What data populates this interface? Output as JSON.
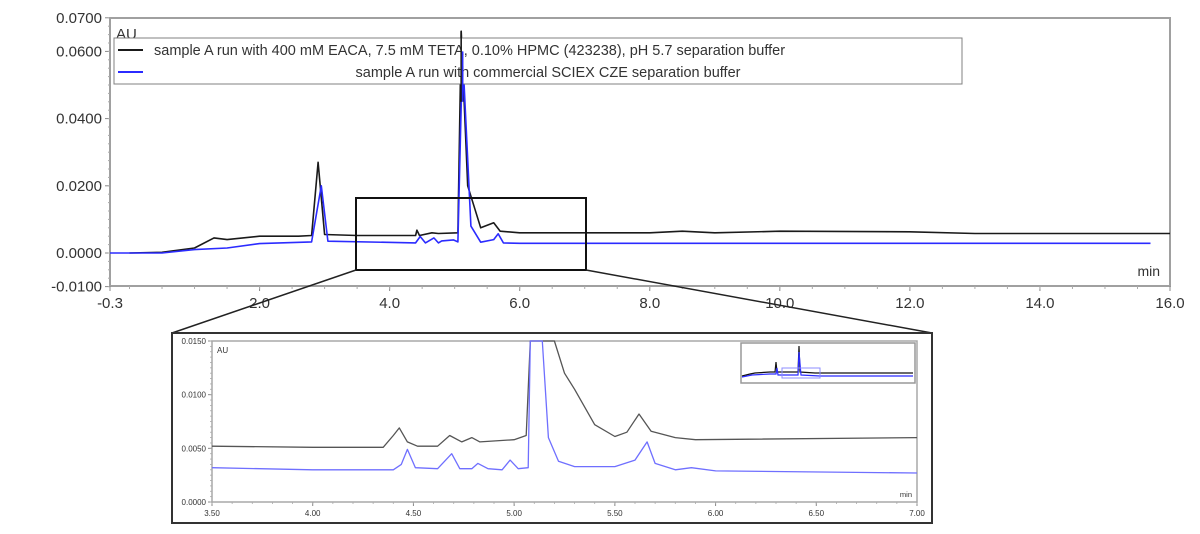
{
  "chart_data": [
    {
      "type": "line",
      "id": "main-electropherogram",
      "title": "",
      "xlabel": "min",
      "ylabel": "AU",
      "xlim": [
        -0.3,
        16.0
      ],
      "ylim": [
        -0.01,
        0.07
      ],
      "x_ticks": [
        "-0.3",
        "2.0",
        "4.0",
        "6.0",
        "8.0",
        "10.0",
        "12.0",
        "14.0",
        "16.0"
      ],
      "y_ticks": [
        "0.0700",
        "0.0600",
        "0.0400",
        "0.0200",
        "0.0000",
        "-0.0100"
      ],
      "legend_position": "top",
      "grid": false,
      "series": [
        {
          "name": "sample A run with 400 mM EACA, 7.5 mM TETA, 0.10% HPMC (423238), pH 5.7 separation buffer",
          "color": "#1a1a1a",
          "points": [
            [
              0.0,
              0.0
            ],
            [
              0.5,
              0.0002
            ],
            [
              1.0,
              0.0015
            ],
            [
              1.3,
              0.0045
            ],
            [
              1.5,
              0.004
            ],
            [
              2.0,
              0.005
            ],
            [
              2.6,
              0.005
            ],
            [
              2.8,
              0.0052
            ],
            [
              2.9,
              0.027
            ],
            [
              3.0,
              0.0055
            ],
            [
              3.5,
              0.0052
            ],
            [
              4.4,
              0.0052
            ],
            [
              4.42,
              0.0068
            ],
            [
              4.46,
              0.0052
            ],
            [
              4.65,
              0.006
            ],
            [
              4.75,
              0.0058
            ],
            [
              5.05,
              0.006
            ],
            [
              5.1,
              0.066
            ],
            [
              5.2,
              0.02
            ],
            [
              5.4,
              0.0075
            ],
            [
              5.6,
              0.009
            ],
            [
              5.7,
              0.0065
            ],
            [
              6.0,
              0.006
            ],
            [
              8.0,
              0.006
            ],
            [
              8.5,
              0.0065
            ],
            [
              9.0,
              0.006
            ],
            [
              10.0,
              0.0065
            ],
            [
              12.0,
              0.0063
            ],
            [
              13.0,
              0.0058
            ],
            [
              16.0,
              0.0058
            ]
          ]
        },
        {
          "name": "sample A run with commercial SCIEX CZE separation buffer",
          "color": "#2b2bff",
          "points": [
            [
              -0.3,
              0.0
            ],
            [
              0.5,
              0.0
            ],
            [
              1.0,
              0.001
            ],
            [
              1.5,
              0.0015
            ],
            [
              2.0,
              0.0028
            ],
            [
              2.8,
              0.0033
            ],
            [
              2.95,
              0.02
            ],
            [
              3.05,
              0.0035
            ],
            [
              4.4,
              0.003
            ],
            [
              4.47,
              0.0049
            ],
            [
              4.55,
              0.003
            ],
            [
              4.68,
              0.0045
            ],
            [
              4.75,
              0.003
            ],
            [
              4.8,
              0.0036
            ],
            [
              4.98,
              0.0039
            ],
            [
              5.05,
              0.0033
            ],
            [
              5.12,
              0.06
            ],
            [
              5.25,
              0.008
            ],
            [
              5.4,
              0.0032
            ],
            [
              5.6,
              0.004
            ],
            [
              5.67,
              0.0057
            ],
            [
              5.75,
              0.003
            ],
            [
              6.0,
              0.0029
            ],
            [
              10.0,
              0.0029
            ],
            [
              15.7,
              0.0029
            ]
          ]
        }
      ],
      "zoom_box": {
        "x": [
          3.5,
          7.0
        ],
        "y": [
          -0.005,
          0.0165
        ]
      }
    },
    {
      "type": "line",
      "id": "inset-zoom",
      "title": "",
      "xlabel": "min",
      "ylabel": "AU",
      "xlim": [
        3.5,
        7.0
      ],
      "ylim": [
        0.0,
        0.015
      ],
      "x_ticks": [
        "3.50",
        "4.00",
        "4.50",
        "5.00",
        "5.50",
        "6.00",
        "6.50",
        "7.00"
      ],
      "y_ticks": [
        "0.0150",
        "0.0100",
        "0.0050",
        "0.0000"
      ],
      "grid": false,
      "series": [
        {
          "name": "sample A run with 400 mM EACA, 7.5 mM TETA, 0.10% HPMC (423238), pH 5.7 separation buffer",
          "color": "#555555",
          "points": [
            [
              3.5,
              0.0052
            ],
            [
              4.0,
              0.0051
            ],
            [
              4.35,
              0.0051
            ],
            [
              4.4,
              0.0062
            ],
            [
              4.43,
              0.0069
            ],
            [
              4.47,
              0.0056
            ],
            [
              4.52,
              0.0052
            ],
            [
              4.62,
              0.0052
            ],
            [
              4.68,
              0.0062
            ],
            [
              4.74,
              0.0056
            ],
            [
              4.79,
              0.006
            ],
            [
              4.83,
              0.0056
            ],
            [
              5.0,
              0.0058
            ],
            [
              5.06,
              0.0062
            ],
            [
              5.08,
              0.015
            ],
            [
              5.2,
              0.015
            ],
            [
              5.25,
              0.012
            ],
            [
              5.3,
              0.0105
            ],
            [
              5.4,
              0.0072
            ],
            [
              5.5,
              0.0061
            ],
            [
              5.56,
              0.0065
            ],
            [
              5.62,
              0.0082
            ],
            [
              5.68,
              0.0066
            ],
            [
              5.8,
              0.006
            ],
            [
              5.9,
              0.0058
            ],
            [
              7.0,
              0.006
            ]
          ]
        },
        {
          "name": "sample A run with commercial SCIEX CZE separation buffer",
          "color": "#6f6fff",
          "points": [
            [
              3.5,
              0.0032
            ],
            [
              4.0,
              0.003
            ],
            [
              4.4,
              0.003
            ],
            [
              4.44,
              0.0035
            ],
            [
              4.47,
              0.0049
            ],
            [
              4.51,
              0.0032
            ],
            [
              4.62,
              0.0031
            ],
            [
              4.69,
              0.0045
            ],
            [
              4.73,
              0.0031
            ],
            [
              4.79,
              0.0031
            ],
            [
              4.82,
              0.0036
            ],
            [
              4.87,
              0.0031
            ],
            [
              4.94,
              0.003
            ],
            [
              4.98,
              0.0039
            ],
            [
              5.02,
              0.0031
            ],
            [
              5.07,
              0.0032
            ],
            [
              5.08,
              0.015
            ],
            [
              5.14,
              0.015
            ],
            [
              5.17,
              0.006
            ],
            [
              5.22,
              0.0038
            ],
            [
              5.3,
              0.0033
            ],
            [
              5.5,
              0.0033
            ],
            [
              5.6,
              0.0039
            ],
            [
              5.66,
              0.0056
            ],
            [
              5.7,
              0.0036
            ],
            [
              5.8,
              0.003
            ],
            [
              5.88,
              0.0032
            ],
            [
              6.0,
              0.0029
            ],
            [
              7.0,
              0.0027
            ]
          ]
        }
      ]
    }
  ],
  "main": {
    "y_unit": "AU",
    "x_unit": "min",
    "legend": [
      {
        "label": "sample A run with 400 mM EACA, 7.5 mM TETA, 0.10% HPMC (423238), pH 5.7 separation buffer",
        "color": "#1a1a1a"
      },
      {
        "label": "sample A run with commercial SCIEX CZE separation buffer",
        "color": "#2b2bff"
      }
    ],
    "y_ticks": [
      {
        "label": "0.0700",
        "value": 0.07
      },
      {
        "label": "0.0600",
        "value": 0.06
      },
      {
        "label": "0.0400",
        "value": 0.04
      },
      {
        "label": "0.0200",
        "value": 0.02
      },
      {
        "label": "0.0000",
        "value": 0.0
      },
      {
        "label": "-0.0100",
        "value": -0.01
      }
    ],
    "x_ticks": [
      {
        "label": "-0.3",
        "value": -0.3
      },
      {
        "label": "2.0",
        "value": 2.0
      },
      {
        "label": "4.0",
        "value": 4.0
      },
      {
        "label": "6.0",
        "value": 6.0
      },
      {
        "label": "8.0",
        "value": 8.0
      },
      {
        "label": "10.0",
        "value": 10.0
      },
      {
        "label": "12.0",
        "value": 12.0
      },
      {
        "label": "14.0",
        "value": 14.0
      },
      {
        "label": "16.0",
        "value": 16.0
      }
    ]
  },
  "inset": {
    "y_unit": "AU",
    "x_unit": "min",
    "y_ticks": [
      {
        "label": "0.0150",
        "value": 0.015
      },
      {
        "label": "0.0100",
        "value": 0.01
      },
      {
        "label": "0.0050",
        "value": 0.005
      },
      {
        "label": "0.0000",
        "value": 0.0
      }
    ],
    "x_ticks": [
      {
        "label": "3.50",
        "value": 3.5
      },
      {
        "label": "4.00",
        "value": 4.0
      },
      {
        "label": "4.50",
        "value": 4.5
      },
      {
        "label": "5.00",
        "value": 5.0
      },
      {
        "label": "5.50",
        "value": 5.5
      },
      {
        "label": "6.00",
        "value": 6.0
      },
      {
        "label": "6.50",
        "value": 6.5
      },
      {
        "label": "7.00",
        "value": 7.0
      }
    ]
  }
}
